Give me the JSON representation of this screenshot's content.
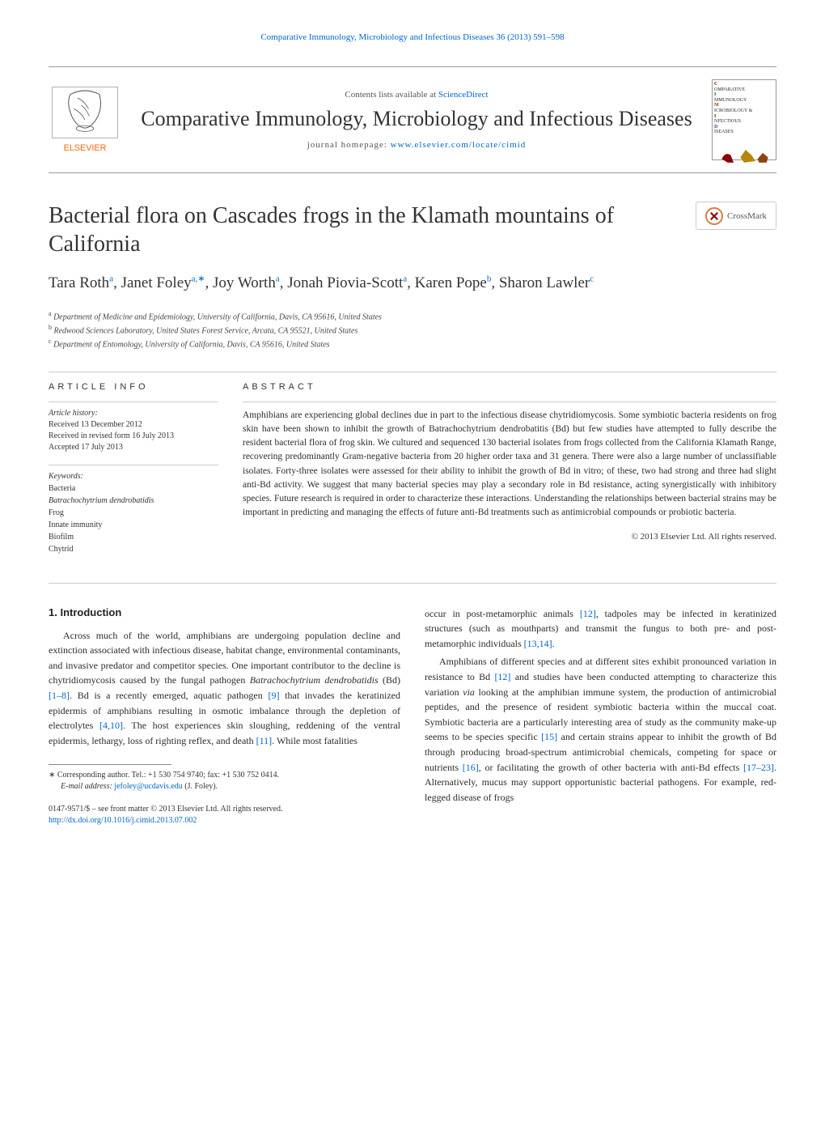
{
  "header": {
    "journal_ref": "Comparative Immunology, Microbiology and Infectious Diseases 36 (2013) 591–598",
    "sciencedirect_prefix": "Contents lists available at ",
    "sciencedirect_link": "ScienceDirect",
    "journal_title": "Comparative Immunology, Microbiology and Infectious Diseases",
    "homepage_prefix": "journal homepage: ",
    "homepage_link": "www.elsevier.com/locate/cimid",
    "elsevier_label": "ELSEVIER",
    "cover_words": [
      "OMPARATIVE",
      "MMUNOLOGY",
      "ICROBIOLOGY &",
      "NFECTIOUS",
      "ISEASES"
    ]
  },
  "crossmark_label": "CrossMark",
  "article": {
    "title": "Bacterial flora on Cascades frogs in the Klamath mountains of California",
    "authors_html": "Tara Roth<sup class='sup'>a</sup>, Janet Foley<sup class='sup'>a,∗</sup>, Joy Worth<sup class='sup'>a</sup>, Jonah Piovia-Scott<sup class='sup'>a</sup>, Karen Pope<sup class='sup'>b</sup>, Sharon Lawler<sup class='sup'>c</sup>",
    "affiliations": [
      {
        "label": "a",
        "text": "Department of Medicine and Epidemiology, University of California, Davis, CA 95616, United States"
      },
      {
        "label": "b",
        "text": "Redwood Sciences Laboratory, United States Forest Service, Arcata, CA 95521, United States"
      },
      {
        "label": "c",
        "text": "Department of Entomology, University of California, Davis, CA 95616, United States"
      }
    ]
  },
  "info": {
    "heading": "ARTICLE INFO",
    "history_label": "Article history:",
    "history": [
      "Received 13 December 2012",
      "Received in revised form 16 July 2013",
      "Accepted 17 July 2013"
    ],
    "keywords_label": "Keywords:",
    "keywords": [
      {
        "text": "Bacteria",
        "italic": false
      },
      {
        "text": "Batrachochytrium dendrobatidis",
        "italic": true
      },
      {
        "text": "Frog",
        "italic": false
      },
      {
        "text": "Innate immunity",
        "italic": false
      },
      {
        "text": "Biofilm",
        "italic": false
      },
      {
        "text": "Chytrid",
        "italic": false
      }
    ]
  },
  "abstract": {
    "heading": "ABSTRACT",
    "text": "Amphibians are experiencing global declines due in part to the infectious disease chytridiomycosis. Some symbiotic bacteria residents on frog skin have been shown to inhibit the growth of Batrachochytrium dendrobatitis (Bd) but few studies have attempted to fully describe the resident bacterial flora of frog skin. We cultured and sequenced 130 bacterial isolates from frogs collected from the California Klamath Range, recovering predominantly Gram-negative bacteria from 20 higher order taxa and 31 genera. There were also a large number of unclassifiable isolates. Forty-three isolates were assessed for their ability to inhibit the growth of Bd in vitro; of these, two had strong and three had slight anti-Bd activity. We suggest that many bacterial species may play a secondary role in Bd resistance, acting synergistically with inhibitory species. Future research is required in order to characterize these interactions. Understanding the relationships between bacterial strains may be important in predicting and managing the effects of future anti-Bd treatments such as antimicrobial compounds or probiotic bacteria.",
    "copyright": "© 2013 Elsevier Ltd. All rights reserved."
  },
  "body": {
    "heading": "1.  Introduction",
    "left_para1_html": "Across much of the world, amphibians are undergoing population decline and extinction associated with infectious disease, habitat change, environmental contaminants, and invasive predator and competitor species. One important contributor to the decline is chytridiomycosis caused by the fungal pathogen <span class='italic'>Batrachochytrium dendrobatidis</span> (Bd) <span class='ref'>[1–8]</span>. Bd is a recently emerged, aquatic pathogen <span class='ref'>[9]</span> that invades the keratinized epidermis of amphibians resulting in osmotic imbalance through the depletion of electrolytes <span class='ref'>[4,10]</span>. The host experiences skin sloughing, reddening of the ventral epidermis, lethargy, loss of righting reflex, and death <span class='ref'>[11]</span>. While most fatalities",
    "right_para1_html": "occur in post-metamorphic animals <span class='ref'>[12]</span>, tadpoles may be infected in keratinized structures (such as mouthparts) and transmit the fungus to both pre- and post-metamorphic individuals <span class='ref'>[13,14]</span>.",
    "right_para2_html": "Amphibians of different species and at different sites exhibit pronounced variation in resistance to Bd <span class='ref'>[12]</span> and studies have been conducted attempting to characterize this variation <span class='italic'>via</span> looking at the amphibian immune system, the production of antimicrobial peptides, and the presence of resident symbiotic bacteria within the muccal coat. Symbiotic bacteria are a particularly interesting area of study as the community make-up seems to be species specific <span class='ref'>[15]</span> and certain strains appear to inhibit the growth of Bd through producing broad-spectrum antimicrobial chemicals, competing for space or nutrients <span class='ref'>[16]</span>, or facilitating the growth of other bacteria with anti-Bd effects <span class='ref'>[17–23]</span>. Alternatively, mucus may support opportunistic bacterial pathogens. For example, red-legged disease of frogs"
  },
  "footnote": {
    "corresponding": "∗ Corresponding author. Tel.: +1 530 754 9740; fax: +1 530 752 0414.",
    "email_label": "E-mail address:",
    "email": "jefoley@ucdavis.edu",
    "email_who": "(J. Foley)."
  },
  "footer": {
    "issn": "0147-9571/$ – see front matter © 2013 Elsevier Ltd. All rights reserved.",
    "doi": "http://dx.doi.org/10.1016/j.cimid.2013.07.002"
  },
  "colors": {
    "link": "#0066cc",
    "text": "#2b2b2b",
    "elsevier_orange": "#ff6600",
    "border": "#999999"
  }
}
